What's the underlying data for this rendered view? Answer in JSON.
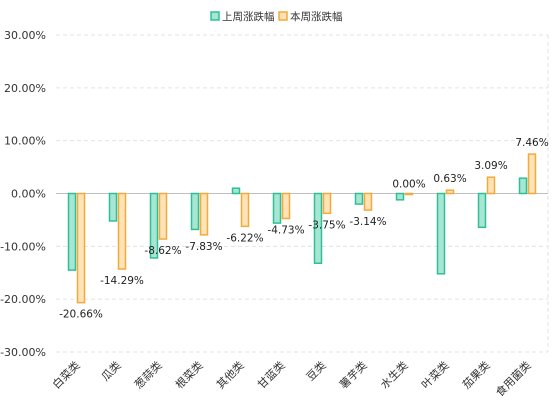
{
  "chart_data": {
    "type": "bar",
    "categories": [
      "白菜类",
      "瓜类",
      "葱蒜类",
      "根菜类",
      "其他类",
      "甘蓝类",
      "豆类",
      "薯芋类",
      "水生类",
      "叶菜类",
      "茄果类",
      "食用菌类"
    ],
    "series": [
      {
        "name": "上周涨跌幅",
        "values": [
          -14.5,
          -5.2,
          -12.2,
          -6.8,
          1.0,
          -5.6,
          -13.2,
          -2.0,
          -1.2,
          -15.2,
          -6.4,
          2.9
        ]
      },
      {
        "name": "本周涨跌幅",
        "values": [
          -20.66,
          -14.29,
          -8.62,
          -7.83,
          -6.22,
          -4.73,
          -3.75,
          -3.14,
          0.0,
          0.63,
          3.09,
          7.46
        ]
      }
    ],
    "data_labels": [
      "-20.66%",
      "-14.29%",
      "-8.62%",
      "-7.83%",
      "-6.22%",
      "-4.73%",
      "-3.75%",
      "-3.14%",
      "0.00%",
      "0.63%",
      "3.09%",
      "7.46%"
    ],
    "y_ticks": [
      "30.00%",
      "20.00%",
      "10.00%",
      "0.00%",
      "-10.00%",
      "-20.00%",
      "-30.00%"
    ],
    "ylim": [
      -30,
      30
    ],
    "grid": true,
    "legend_position": "top-center",
    "colors": {
      "series1_fill": "#a8e6d4",
      "series1_stroke": "#2fbf97",
      "series2_fill": "#fde3b8",
      "series2_stroke": "#f5a93a",
      "grid": "#e3e3e3",
      "axis": "#bfbfbf"
    }
  }
}
